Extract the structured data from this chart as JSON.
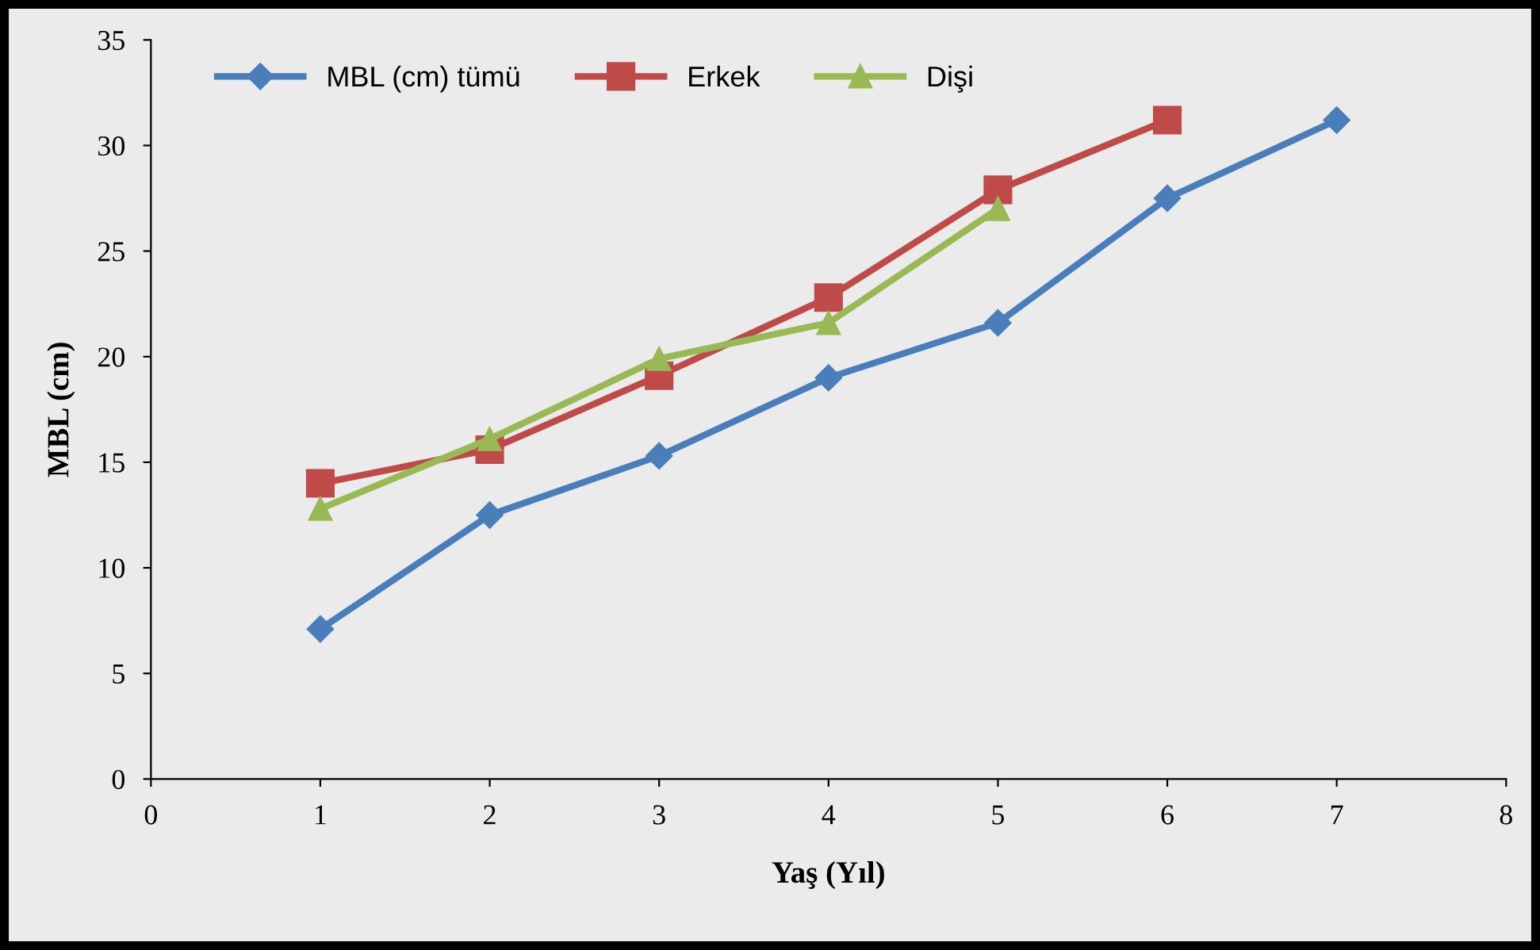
{
  "chart_data": {
    "type": "line",
    "xlabel": "Yaş (Yıl)",
    "ylabel": "MBL (cm)",
    "xlim": [
      0,
      8
    ],
    "xticks": [
      0,
      1,
      2,
      3,
      4,
      5,
      6,
      7,
      8
    ],
    "ylim": [
      0,
      35
    ],
    "yticks": [
      0,
      5,
      10,
      15,
      20,
      25,
      30,
      35
    ],
    "grid": false,
    "legend": "top left",
    "series": [
      {
        "name": "MBL (cm) tümü",
        "color": "#4a7ebb",
        "marker": "diamond",
        "x": [
          1,
          2,
          3,
          4,
          5,
          6,
          7
        ],
        "values": [
          7.1,
          12.5,
          15.3,
          19.0,
          21.6,
          27.5,
          31.2
        ]
      },
      {
        "name": "Erkek",
        "color": "#be4b48",
        "marker": "square",
        "x": [
          1,
          2,
          3,
          4,
          5,
          6
        ],
        "values": [
          14.0,
          15.6,
          19.1,
          22.8,
          27.9,
          31.2
        ]
      },
      {
        "name": "Dişi",
        "color": "#98b954",
        "marker": "triangle",
        "x": [
          1,
          2,
          3,
          4,
          5
        ],
        "values": [
          12.8,
          16.1,
          19.9,
          21.6,
          27.0
        ]
      }
    ]
  }
}
